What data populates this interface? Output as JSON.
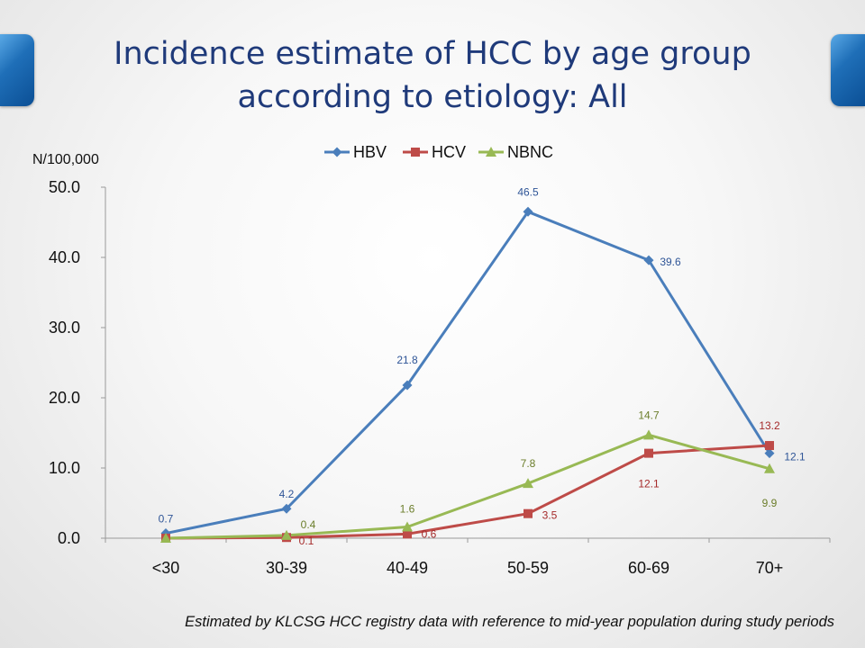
{
  "slide": {
    "title_line1": "Incidence estimate of HCC by age group",
    "title_line2": "according to etiology: All",
    "footnote": "Estimated by KLCSG HCC registry data with reference to mid-year population during study periods"
  },
  "chart_data": {
    "type": "line",
    "title": "",
    "ylabel": "N/100,000",
    "xlabel": "",
    "categories": [
      "<30",
      "30-39",
      "40-49",
      "50-59",
      "60-69",
      "70+"
    ],
    "ylim": [
      0,
      50
    ],
    "yticks": [
      "0.0",
      "10.0",
      "20.0",
      "30.0",
      "40.0",
      "50.0"
    ],
    "grid": false,
    "legend_position": "top",
    "series": [
      {
        "name": "HBV",
        "values": [
          0.7,
          4.2,
          21.8,
          46.5,
          39.6,
          12.1
        ],
        "labels": [
          "0.7",
          "4.2",
          "21.8",
          "46.5",
          "39.6",
          "12.1"
        ],
        "color": "#4a7ebb",
        "marker": "diamond"
      },
      {
        "name": "HCV",
        "values": [
          0.0,
          0.1,
          0.6,
          3.5,
          12.1,
          13.2
        ],
        "labels": [
          "",
          "0.1",
          "0.6",
          "3.5",
          "12.1",
          "13.2"
        ],
        "color": "#be4b48",
        "marker": "square"
      },
      {
        "name": "NBNC",
        "values": [
          0.0,
          0.4,
          1.6,
          7.8,
          14.7,
          9.9
        ],
        "labels": [
          "",
          "0.4",
          "1.6",
          "7.8",
          "14.7",
          "9.9"
        ],
        "color": "#98b954",
        "marker": "triangle"
      }
    ]
  }
}
